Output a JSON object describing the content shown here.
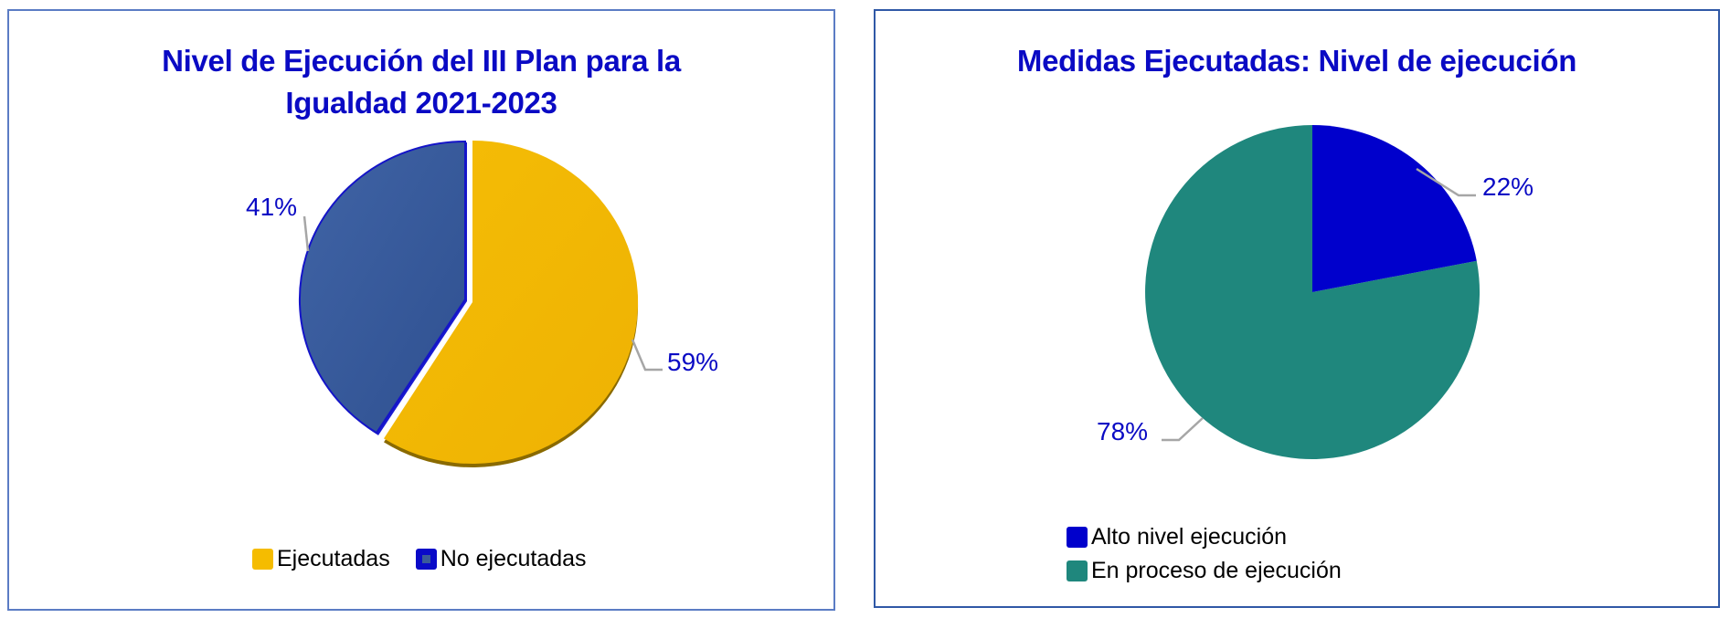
{
  "chart_data": [
    {
      "type": "pie",
      "title": "Nivel de Ejecución del III Plan para la Igualdad 2021-2023",
      "title_lines": [
        "Nivel de Ejecución del III Plan para la",
        "Igualdad 2021-2023"
      ],
      "categories": [
        "Ejecutadas",
        "No ejecutadas"
      ],
      "values": [
        59,
        41
      ],
      "labels": [
        "59%",
        "41%"
      ],
      "colors": [
        "#F2B705",
        "#3A5A9A"
      ],
      "legend_position": "bottom",
      "style": "3d-exploded"
    },
    {
      "type": "pie",
      "title": "Medidas Ejecutadas: Nivel de ejecución",
      "categories": [
        "Alto nivel ejecución",
        "En proceso de ejecución"
      ],
      "values": [
        22,
        78
      ],
      "labels": [
        "22%",
        "78%"
      ],
      "colors": [
        "#0000CC",
        "#1F877D"
      ],
      "legend_position": "bottom"
    }
  ],
  "left": {
    "title_line1": "Nivel de Ejecución del III Plan para la",
    "title_line2": "Igualdad 2021-2023",
    "legend": [
      {
        "label": "Ejecutadas",
        "color": "#F5BC00"
      },
      {
        "label": "No ejecutadas",
        "color": "#0A0AC8"
      }
    ]
  },
  "right": {
    "title": "Medidas Ejecutadas: Nivel de ejecución",
    "legend": [
      {
        "label": "Alto nivel ejecución",
        "color": "#0000CC"
      },
      {
        "label": "En proceso de ejecución",
        "color": "#1F877D"
      }
    ]
  }
}
